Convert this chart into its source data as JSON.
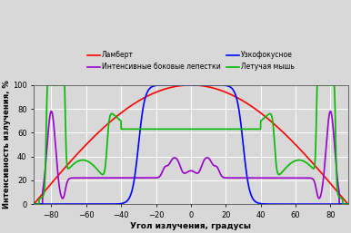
{
  "xlabel": "Угол излучения, градусы",
  "ylabel": "Интенсивность излучения, %",
  "xlim": [
    -90,
    90
  ],
  "ylim": [
    0,
    100
  ],
  "xticks": [
    -80,
    -60,
    -40,
    -20,
    0,
    20,
    40,
    60,
    80
  ],
  "yticks": [
    0,
    20,
    40,
    60,
    80,
    100
  ],
  "legend": [
    {
      "label": "Ламберт",
      "color": "#ff0000"
    },
    {
      "label": "Интенсивные боковые лепестки",
      "color": "#9900cc"
    },
    {
      "label": "Узкофокусное",
      "color": "#0000ff"
    },
    {
      "label": "Летучая мышь",
      "color": "#00bb00"
    }
  ],
  "background_color": "#d8d8d8",
  "grid_color": "#ffffff",
  "linewidth": 1.2
}
